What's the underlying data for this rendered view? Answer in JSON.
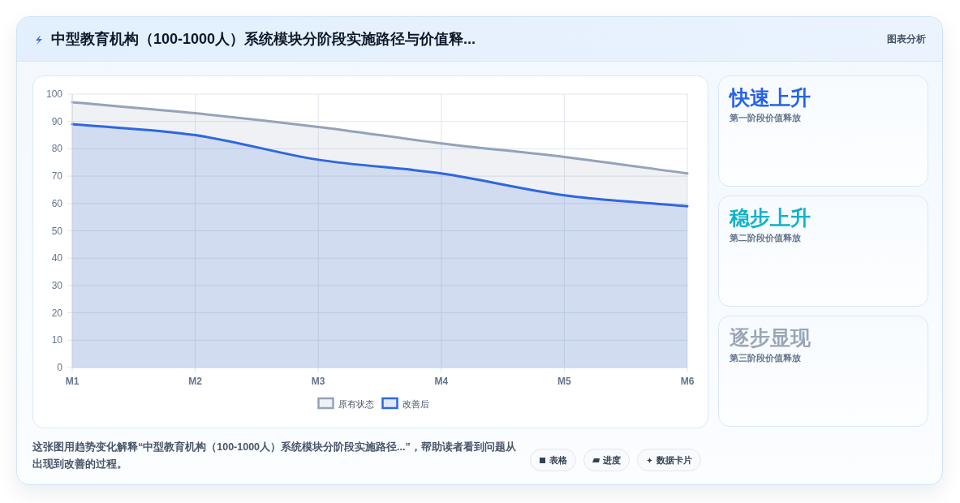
{
  "chart_data": [
    {
      "type": "area",
      "title": "中型教育机构（100-1000人）系统模块分阶段实施路径与价值释...",
      "categories": [
        "M1",
        "M2",
        "M3",
        "M4",
        "M5",
        "M6"
      ],
      "series": [
        {
          "name": "原有状态",
          "color": "#94a3b8",
          "values": [
            97,
            93,
            88,
            82,
            77,
            71
          ]
        },
        {
          "name": "改善后",
          "color": "#2f67e0",
          "values": [
            89,
            85,
            76,
            71,
            63,
            59
          ]
        }
      ],
      "ylim": [
        0,
        100
      ],
      "yticks": [
        0,
        10,
        20,
        30,
        40,
        50,
        60,
        70,
        80,
        90,
        100
      ],
      "grid": true,
      "legend": "bottom",
      "annotations": [
        "图表分析",
        "这张图用趋势变化解释“中型教育机构（100-1000人）系统模块分阶段实施路径...”，帮助读者看到问题从出现到改善的过程。",
        "表格",
        "进度",
        "数据卡片"
      ]
    },
    {
      "type": "other",
      "title": "快速上升",
      "subtitle": "第一阶段价值释放",
      "color": "#2563eb"
    },
    {
      "type": "other",
      "title": "稳步上升",
      "subtitle": "第二阶段价值释放",
      "color": "#0fb3c9"
    },
    {
      "type": "other",
      "title": "逐步显现",
      "subtitle": "第三阶段价值释放",
      "color": "#9aa6b8"
    }
  ]
}
